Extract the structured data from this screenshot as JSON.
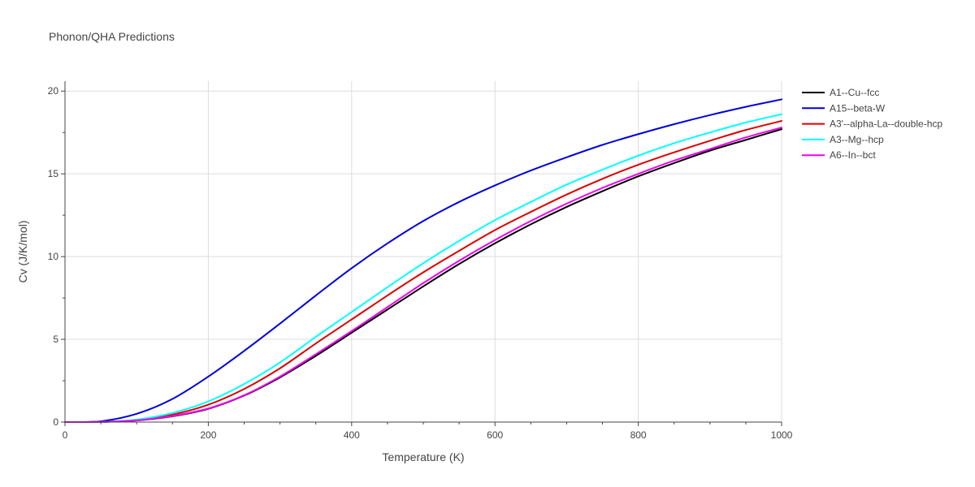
{
  "chart_data": {
    "type": "line",
    "title": "Phonon/QHA Predictions",
    "xlabel": "Temperature (K)",
    "ylabel": "Cv (J/K/mol)",
    "xlim": [
      0,
      1000
    ],
    "ylim": [
      0,
      20.6
    ],
    "xticks": [
      0,
      200,
      400,
      600,
      800,
      1000
    ],
    "xtick_labels": [
      "0",
      "200",
      "400",
      "600",
      "800",
      "1000"
    ],
    "yticks": [
      0,
      5,
      10,
      15,
      20
    ],
    "ytick_labels": [
      "0",
      "5",
      "10",
      "15",
      "20"
    ],
    "grid": true,
    "legend_position": "right",
    "x": [
      0,
      50,
      100,
      150,
      200,
      250,
      300,
      350,
      400,
      450,
      500,
      550,
      600,
      650,
      700,
      750,
      800,
      850,
      900,
      950,
      1000
    ],
    "series": [
      {
        "name": "A1--Cu--fcc",
        "color": "#000000",
        "values": [
          0,
          0.01,
          0.1,
          0.35,
          0.8,
          1.6,
          2.7,
          4.0,
          5.4,
          6.8,
          8.2,
          9.55,
          10.8,
          11.95,
          13.0,
          13.95,
          14.85,
          15.65,
          16.4,
          17.05,
          17.7
        ]
      },
      {
        "name": "A15--beta-W",
        "color": "#0000dd",
        "values": [
          0,
          0.05,
          0.5,
          1.4,
          2.75,
          4.3,
          5.95,
          7.65,
          9.3,
          10.8,
          12.15,
          13.3,
          14.3,
          15.2,
          16.0,
          16.75,
          17.4,
          18.0,
          18.55,
          19.05,
          19.5
        ]
      },
      {
        "name": "A3'--alpha-La--double-hcp",
        "color": "#dd0000",
        "values": [
          0,
          0.01,
          0.13,
          0.45,
          1.05,
          2.0,
          3.25,
          4.75,
          6.2,
          7.65,
          9.05,
          10.35,
          11.6,
          12.7,
          13.75,
          14.7,
          15.55,
          16.3,
          17.0,
          17.65,
          18.2
        ]
      },
      {
        "name": "A3--Mg--hcp",
        "color": "#00ffff",
        "values": [
          0,
          0.01,
          0.15,
          0.55,
          1.25,
          2.3,
          3.6,
          5.15,
          6.65,
          8.15,
          9.6,
          10.95,
          12.2,
          13.3,
          14.35,
          15.25,
          16.1,
          16.85,
          17.5,
          18.1,
          18.6
        ]
      },
      {
        "name": "A6--In--bct",
        "color": "#ee00ee",
        "values": [
          0,
          0.01,
          0.1,
          0.37,
          0.82,
          1.62,
          2.75,
          4.1,
          5.5,
          6.95,
          8.4,
          9.75,
          11.0,
          12.15,
          13.2,
          14.15,
          15.0,
          15.8,
          16.5,
          17.2,
          17.8
        ]
      }
    ]
  }
}
